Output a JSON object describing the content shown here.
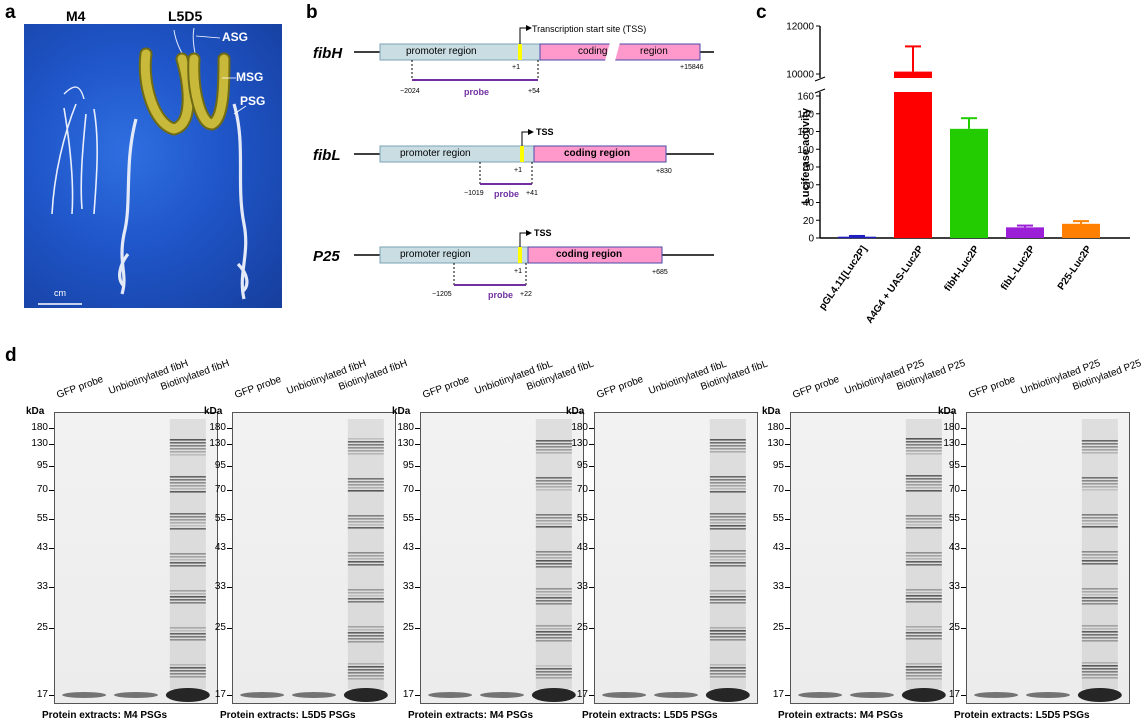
{
  "panels": {
    "a": "a",
    "b": "b",
    "c": "c",
    "d": "d"
  },
  "panel_a": {
    "labels": {
      "m4": "M4",
      "l5d5": "L5D5"
    },
    "gland_labels": {
      "asg": "ASG",
      "msg": "MSG",
      "psg": "PSG"
    },
    "scale_label": "cm"
  },
  "panel_b": {
    "tss_full": "Transcription start site (TSS)",
    "tss": "TSS",
    "promoter": "promoter region",
    "plus1": "+1",
    "probe": "probe",
    "genes": [
      {
        "name": "fibH",
        "coding_left": "coding",
        "coding_right": "region",
        "end": "+15846",
        "probe_start": "−2024",
        "probe_end": "+54"
      },
      {
        "name": "fibL",
        "coding": "coding region",
        "end": "+830",
        "probe_start": "−1019",
        "probe_end": "+41"
      },
      {
        "name": "P25",
        "coding": "coding region",
        "end": "+685",
        "probe_start": "−1205",
        "probe_end": "+22"
      }
    ]
  },
  "chart_data": {
    "type": "bar",
    "ylabel": "Luciferase activity",
    "broken_axis": true,
    "ylim_lower": [
      0,
      160
    ],
    "ylim_upper": [
      10000,
      12000
    ],
    "yticks_lower": [
      "0",
      "20",
      "40",
      "60",
      "80",
      "100",
      "120",
      "140",
      "160"
    ],
    "yticks_upper": [
      "10000",
      "12000"
    ],
    "categories": [
      "pGL4.11[Luc2P]",
      "A4G4 + UAS-Luc2P",
      "fibH-Luc2P",
      "fibL-Luc2P",
      "P25-Luc2P"
    ],
    "values": [
      1.5,
      10100,
      123,
      12,
      16
    ],
    "errors": [
      0.8,
      1050,
      12,
      2,
      3
    ],
    "colors": [
      "#1f1fbf",
      "#ff0000",
      "#22cc00",
      "#9b1fd6",
      "#ff8000"
    ]
  },
  "panel_d": {
    "kda_head": "kDa",
    "markers": [
      "180",
      "130",
      "95",
      "70",
      "55",
      "43",
      "33",
      "25",
      "17"
    ],
    "gels": [
      {
        "lanes": [
          "GFP probe",
          "Unbiotinylated fibH",
          "Biotinylated fibH"
        ],
        "caption": "Protein extracts: M4 PSGs"
      },
      {
        "lanes": [
          "GFP probe",
          "Unbiotinylated fibH",
          "Biotinylated fibH"
        ],
        "caption": "Protein extracts: L5D5 PSGs"
      },
      {
        "lanes": [
          "GFP probe",
          "Unbiotinylated fibL",
          "Biotinylated fibL"
        ],
        "caption": "Protein extracts: M4 PSGs"
      },
      {
        "lanes": [
          "GFP probe",
          "Unbiotinylated fibL",
          "Biotinylated fibL"
        ],
        "caption": "Protein extracts: L5D5 PSGs"
      },
      {
        "lanes": [
          "GFP probe",
          "Unbiotinylated P25",
          "Biotinylated P25"
        ],
        "caption": "Protein extracts: M4 PSGs"
      },
      {
        "lanes": [
          "GFP probe",
          "Unbiotinylated P25",
          "Biotinylated P25"
        ],
        "caption": "Protein extracts: L5D5 PSGs"
      }
    ]
  }
}
